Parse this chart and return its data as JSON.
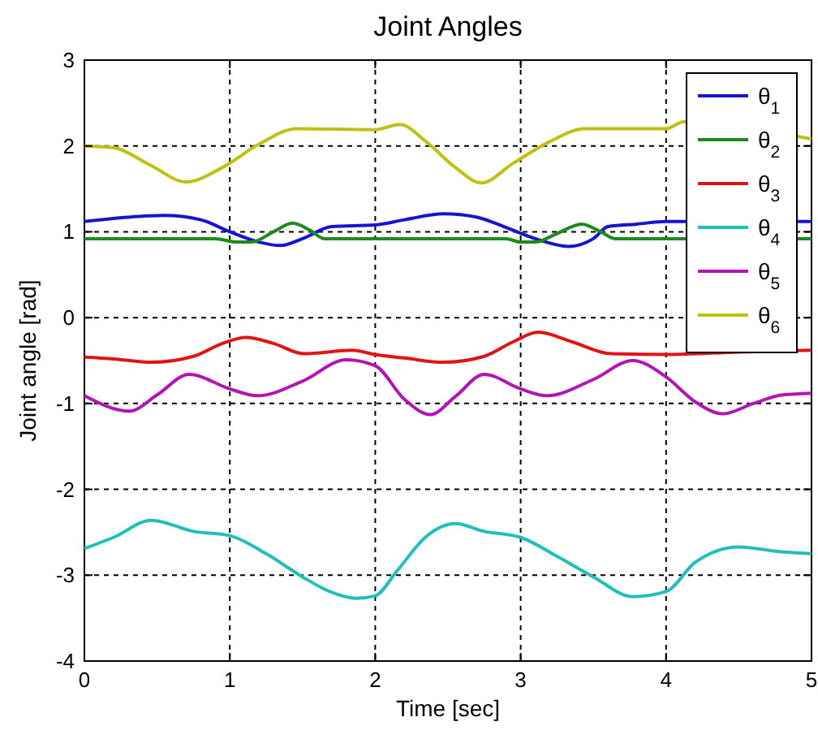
{
  "chart_data": {
    "type": "line",
    "title": "Joint Angles",
    "xlabel": "Time [sec]",
    "ylabel": "Joint angle [rad]",
    "xlim": [
      0,
      5
    ],
    "ylim": [
      -4,
      3
    ],
    "xticks": [
      0,
      1,
      2,
      3,
      4,
      5
    ],
    "yticks": [
      -4,
      -3,
      -2,
      -1,
      0,
      1,
      2,
      3
    ],
    "grid": true,
    "legend": "top right",
    "line_style": "solid",
    "marker": "none",
    "series": [
      {
        "name": "θ$_{1}$",
        "color": "#1414d2",
        "x": [
          0,
          0.3,
          0.55,
          0.8,
          1.0,
          1.2,
          1.35,
          1.5,
          1.7,
          2.0,
          2.2,
          2.47,
          2.7,
          2.9,
          3.1,
          3.33,
          3.5,
          3.6,
          3.8,
          4.0,
          5.0
        ],
        "values": [
          1.12,
          1.17,
          1.19,
          1.14,
          1.0,
          0.88,
          0.84,
          0.92,
          1.06,
          1.08,
          1.14,
          1.21,
          1.17,
          1.05,
          0.92,
          0.83,
          0.92,
          1.06,
          1.09,
          1.12,
          1.12
        ]
      },
      {
        "name": "θ$_{2}$",
        "color": "#1e8a1e",
        "x": [
          0,
          0.9,
          1.05,
          1.15,
          1.3,
          1.43,
          1.55,
          1.65,
          2.0,
          2.9,
          3.0,
          3.1,
          3.25,
          3.42,
          3.55,
          3.65,
          4.0,
          5.0
        ],
        "values": [
          0.92,
          0.92,
          0.88,
          0.88,
          1.0,
          1.1,
          1.02,
          0.92,
          0.92,
          0.92,
          0.88,
          0.88,
          0.98,
          1.09,
          1.0,
          0.92,
          0.92,
          0.92
        ]
      },
      {
        "name": "θ$_{3}$",
        "color": "#e01414",
        "x": [
          0,
          0.2,
          0.46,
          0.75,
          0.95,
          1.11,
          1.3,
          1.51,
          1.84,
          2.0,
          2.2,
          2.47,
          2.75,
          2.95,
          3.12,
          3.35,
          3.62,
          4.0,
          4.5,
          5.0
        ],
        "values": [
          -0.46,
          -0.48,
          -0.52,
          -0.45,
          -0.3,
          -0.23,
          -0.3,
          -0.42,
          -0.38,
          -0.43,
          -0.47,
          -0.52,
          -0.45,
          -0.28,
          -0.17,
          -0.28,
          -0.42,
          -0.43,
          -0.4,
          -0.38
        ]
      },
      {
        "name": "θ$_{4}$",
        "color": "#20c0b8",
        "x": [
          0,
          0.2,
          0.46,
          0.75,
          1.0,
          1.25,
          1.5,
          1.7,
          1.87,
          2.0,
          2.15,
          2.35,
          2.55,
          2.75,
          3.0,
          3.25,
          3.5,
          3.77,
          4.0,
          4.2,
          4.5,
          4.75,
          5.0
        ],
        "values": [
          -2.69,
          -2.56,
          -2.36,
          -2.49,
          -2.54,
          -2.75,
          -3.02,
          -3.2,
          -3.27,
          -3.24,
          -2.95,
          -2.55,
          -2.4,
          -2.49,
          -2.56,
          -2.78,
          -3.02,
          -3.25,
          -3.19,
          -2.85,
          -2.67,
          -2.72,
          -2.75
        ]
      },
      {
        "name": "θ$_{5}$",
        "color": "#b414b4",
        "x": [
          0,
          0.31,
          0.5,
          0.72,
          1.0,
          1.19,
          1.5,
          1.8,
          2.0,
          2.2,
          2.38,
          2.55,
          2.75,
          3.0,
          3.18,
          3.5,
          3.77,
          4.0,
          4.2,
          4.39,
          4.6,
          4.8,
          5.0
        ],
        "values": [
          -0.91,
          -1.09,
          -0.9,
          -0.66,
          -0.83,
          -0.91,
          -0.74,
          -0.49,
          -0.56,
          -0.95,
          -1.13,
          -0.92,
          -0.66,
          -0.83,
          -0.91,
          -0.72,
          -0.5,
          -0.69,
          -0.98,
          -1.12,
          -1.0,
          -0.9,
          -0.88
        ]
      },
      {
        "name": "θ$_{6}$",
        "color": "#c0c014",
        "x": [
          0,
          0.2,
          0.45,
          0.7,
          0.95,
          1.2,
          1.46,
          2.0,
          2.17,
          2.35,
          2.55,
          2.73,
          2.95,
          3.2,
          3.44,
          4.0,
          4.12,
          5.0
        ],
        "values": [
          2.0,
          1.98,
          1.78,
          1.58,
          1.75,
          2.02,
          2.2,
          2.19,
          2.25,
          2.05,
          1.75,
          1.57,
          1.8,
          2.05,
          2.2,
          2.2,
          2.28,
          2.08
        ]
      }
    ]
  }
}
